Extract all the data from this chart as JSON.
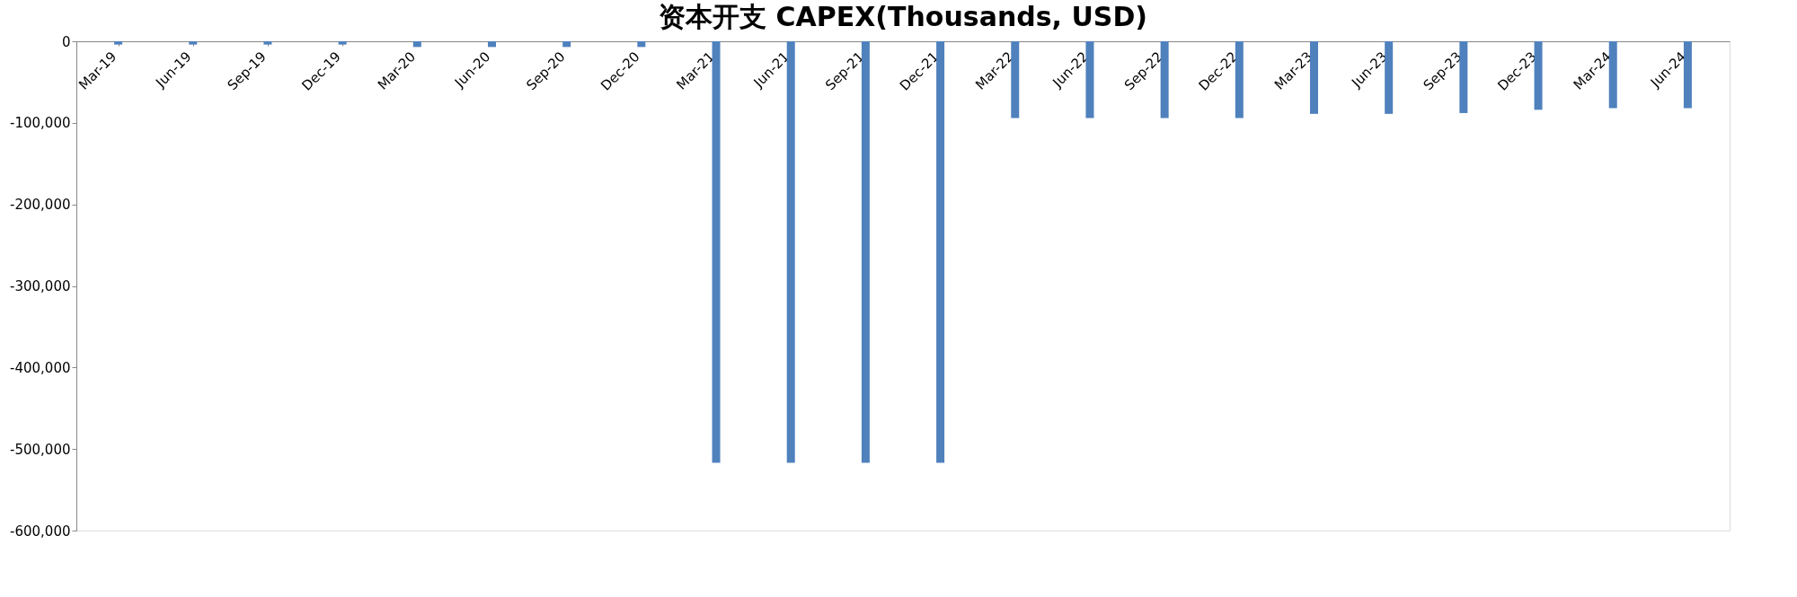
{
  "chart_data": {
    "type": "bar",
    "title": "资本开支 CAPEX(Thousands, USD)",
    "categories": [
      "Mar-19",
      "Jun-19",
      "Sep-19",
      "Dec-19",
      "Mar-20",
      "Jun-20",
      "Sep-20",
      "Dec-20",
      "Mar-21",
      "Jun-21",
      "Sep-21",
      "Dec-21",
      "Mar-22",
      "Jun-22",
      "Sep-22",
      "Dec-22",
      "Mar-23",
      "Jun-23",
      "Sep-23",
      "Dec-23",
      "Mar-24",
      "Jun-24"
    ],
    "series": [
      {
        "color": "#4f81bd",
        "values": [
          -4000,
          -4000,
          -4000,
          -4000,
          -7000,
          -7000,
          -7000,
          -7000,
          -517000,
          -517000,
          -517000,
          -517000,
          -94000,
          -94000,
          -94000,
          -94000,
          -89000,
          -89000,
          -88000,
          -84000,
          -82000,
          -82000
        ]
      }
    ],
    "ylim": [
      -600000,
      0
    ],
    "yticks": [
      {
        "value": -600000,
        "label": "-600,000"
      },
      {
        "value": -500000,
        "label": "-500,000"
      },
      {
        "value": -400000,
        "label": "-400,000"
      },
      {
        "value": -300000,
        "label": "-300,000"
      },
      {
        "value": -200000,
        "label": "-200,000"
      },
      {
        "value": -100000,
        "label": "-100,000"
      },
      {
        "value": 0,
        "label": "0"
      }
    ],
    "grid": false,
    "legend": false
  }
}
